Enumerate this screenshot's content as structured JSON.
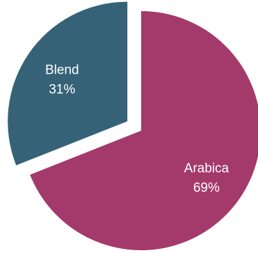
{
  "chart_data": {
    "type": "pie",
    "title": "",
    "slices": [
      {
        "label": "Arabica",
        "value": 69,
        "value_label": "69%",
        "color": "#A43A6B",
        "exploded": false
      },
      {
        "label": "Blend",
        "value": 31,
        "value_label": "31%",
        "color": "#356277",
        "exploded": true
      }
    ],
    "legend": "none",
    "start_angle_deg": 0,
    "direction": "clockwise"
  }
}
